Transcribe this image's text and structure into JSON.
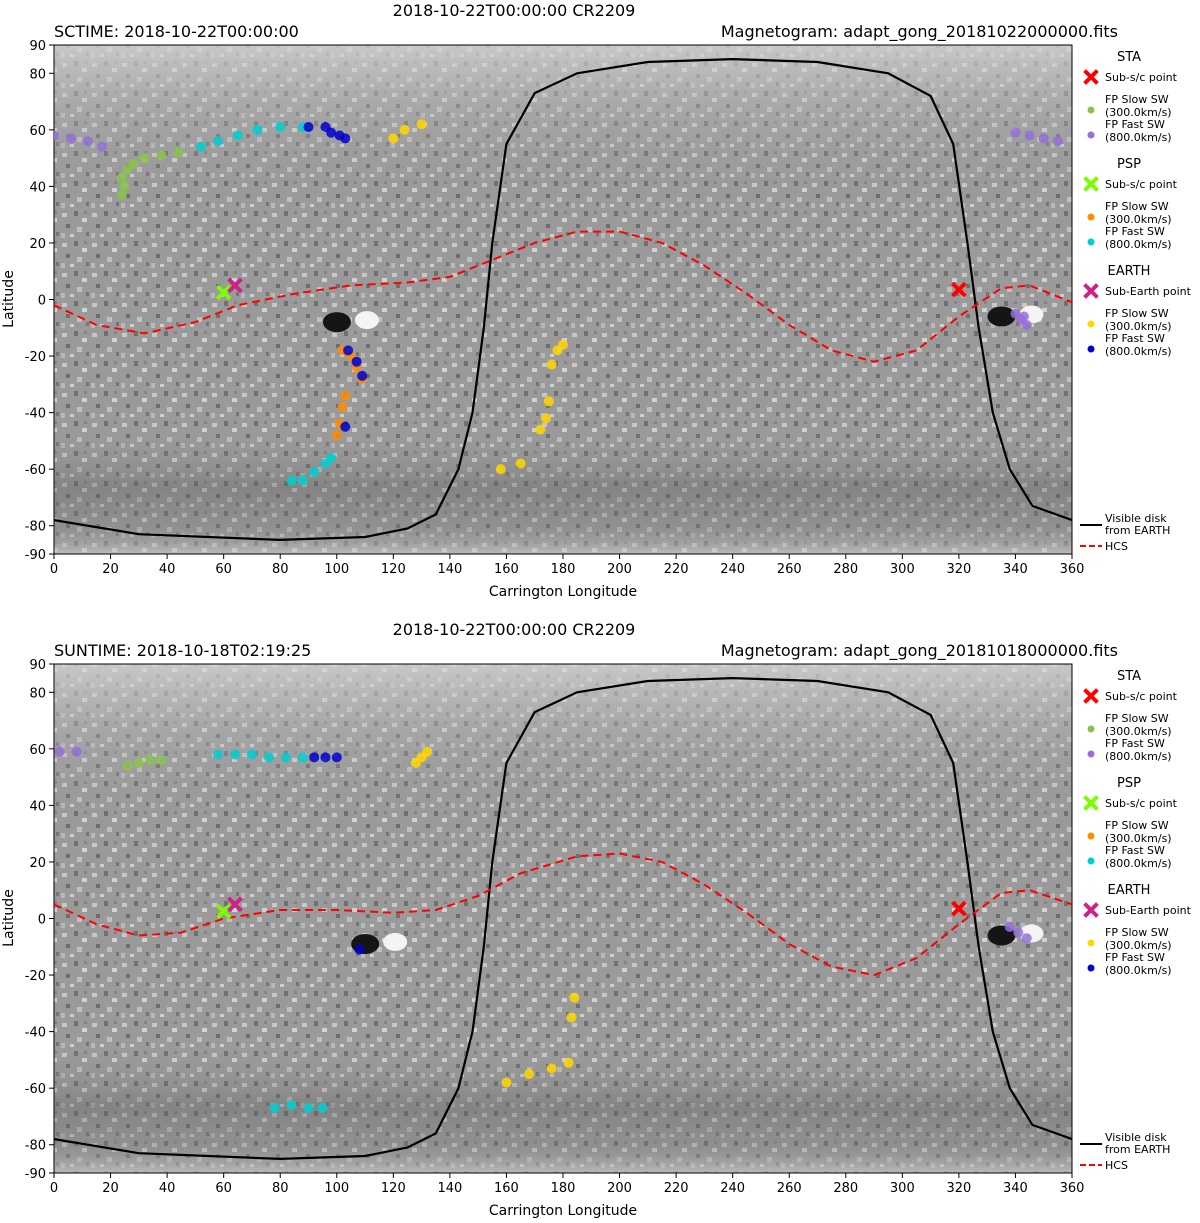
{
  "chart_data": [
    {
      "type": "scatter",
      "title": "2018-10-22T00:00:00 CR2209",
      "left_title": "SCTIME: 2018-10-22T00:00:00",
      "right_title": "Magnetogram: adapt_gong_20181022000000.fits",
      "xlabel": "Carrington Longitude",
      "ylabel": "Latitude",
      "xlim": [
        0,
        360
      ],
      "ylim": [
        -90,
        90
      ],
      "xticks": [
        "0",
        "20",
        "40",
        "60",
        "80",
        "100",
        "120",
        "140",
        "160",
        "180",
        "200",
        "220",
        "240",
        "260",
        "280",
        "300",
        "320",
        "340",
        "360"
      ],
      "yticks": [
        "90",
        "80",
        "60",
        "40",
        "20",
        "0",
        "-20",
        "-40",
        "-60",
        "-80",
        "-90"
      ],
      "background": "grayscale magnetogram",
      "magnetogram_patches": [
        {
          "lon": 105,
          "lat": -8,
          "polarity": "mixed"
        },
        {
          "lon": 340,
          "lat": -6,
          "polarity": "mixed"
        }
      ],
      "hcs": [
        [
          0,
          -2
        ],
        [
          15,
          -9
        ],
        [
          32,
          -12
        ],
        [
          50,
          -8
        ],
        [
          65,
          -2
        ],
        [
          85,
          2
        ],
        [
          105,
          5
        ],
        [
          125,
          6
        ],
        [
          140,
          8
        ],
        [
          155,
          14
        ],
        [
          170,
          20
        ],
        [
          185,
          24
        ],
        [
          200,
          24
        ],
        [
          215,
          20
        ],
        [
          230,
          12
        ],
        [
          245,
          2
        ],
        [
          260,
          -9
        ],
        [
          275,
          -18
        ],
        [
          290,
          -22
        ],
        [
          305,
          -18
        ],
        [
          320,
          -6
        ],
        [
          335,
          4
        ],
        [
          345,
          5
        ],
        [
          360,
          -1
        ]
      ],
      "visible_disk": [
        [
          0,
          -78
        ],
        [
          30,
          -83
        ],
        [
          80,
          -85
        ],
        [
          110,
          -84
        ],
        [
          125,
          -81
        ],
        [
          135,
          -76
        ],
        [
          143,
          -60
        ],
        [
          148,
          -40
        ],
        [
          152,
          -10
        ],
        [
          155,
          20
        ],
        [
          160,
          55
        ],
        [
          170,
          73
        ],
        [
          185,
          80
        ],
        [
          210,
          84
        ],
        [
          240,
          85
        ],
        [
          270,
          84
        ],
        [
          295,
          80
        ],
        [
          310,
          72
        ],
        [
          318,
          55
        ],
        [
          323,
          20
        ],
        [
          327,
          -10
        ],
        [
          332,
          -40
        ],
        [
          338,
          -60
        ],
        [
          346,
          -73
        ],
        [
          360,
          -78
        ]
      ],
      "footpoints": [
        {
          "group": "STA",
          "type": "FP Fast SW",
          "color": "#9370DB",
          "points": [
            [
              0,
              58
            ],
            [
              6,
              57
            ],
            [
              12,
              56
            ],
            [
              17,
              54
            ],
            [
              340,
              59
            ],
            [
              345,
              58
            ],
            [
              350,
              57
            ],
            [
              355,
              56
            ],
            [
              340,
              -5
            ],
            [
              342,
              -7
            ],
            [
              344,
              -9
            ],
            [
              343,
              -6
            ]
          ]
        },
        {
          "group": "STA",
          "type": "FP Slow SW",
          "color": "#8BC34A",
          "points": [
            [
              24,
              37
            ],
            [
              25,
              40
            ],
            [
              24,
              43
            ],
            [
              26,
              46
            ],
            [
              28,
              48
            ],
            [
              32,
              50
            ],
            [
              38,
              51
            ],
            [
              44,
              52
            ]
          ]
        },
        {
          "group": "PSP",
          "type": "FP Fast SW",
          "color": "#00CED1",
          "points": [
            [
              52,
              54
            ],
            [
              58,
              56
            ],
            [
              65,
              58
            ],
            [
              72,
              60
            ],
            [
              80,
              61
            ],
            [
              88,
              61
            ],
            [
              84,
              -64
            ],
            [
              88,
              -64
            ],
            [
              92,
              -61
            ],
            [
              96,
              -58
            ],
            [
              98,
              -56
            ]
          ]
        },
        {
          "group": "PSP",
          "type": "FP Slow SW",
          "color": "#FF8C00",
          "points": [
            [
              102,
              -18
            ],
            [
              105,
              -20
            ],
            [
              107,
              -24
            ],
            [
              109,
              -28
            ],
            [
              103,
              -34
            ],
            [
              102,
              -38
            ],
            [
              101,
              -44
            ],
            [
              100,
              -48
            ]
          ]
        },
        {
          "group": "EARTH",
          "type": "FP Fast SW",
          "color": "#0000CD",
          "points": [
            [
              90,
              61
            ],
            [
              96,
              61
            ],
            [
              98,
              59
            ],
            [
              101,
              58
            ],
            [
              103,
              57
            ],
            [
              104,
              -18
            ],
            [
              107,
              -22
            ],
            [
              109,
              -27
            ],
            [
              103,
              -45
            ]
          ]
        },
        {
          "group": "EARTH",
          "type": "FP Slow SW",
          "color": "#FFD700",
          "points": [
            [
              120,
              57
            ],
            [
              124,
              60
            ],
            [
              130,
              62
            ],
            [
              176,
              -23
            ],
            [
              178,
              -18
            ],
            [
              180,
              -16
            ],
            [
              175,
              -36
            ],
            [
              174,
              -42
            ],
            [
              172,
              -46
            ],
            [
              165,
              -58
            ],
            [
              158,
              -60
            ]
          ]
        }
      ],
      "markers": [
        {
          "group": "STA",
          "label": "Sub-s/c point",
          "lon": 320,
          "lat": 3.5,
          "color": "#FF0000"
        },
        {
          "group": "PSP",
          "label": "Sub-s/c point",
          "lon": 60,
          "lat": 2.5,
          "color": "#7CFC00"
        },
        {
          "group": "EARTH",
          "label": "Sub-Earth point",
          "lon": 64,
          "lat": 5,
          "color": "#CC2288"
        }
      ]
    },
    {
      "type": "scatter",
      "title": "2018-10-22T00:00:00 CR2209",
      "left_title": "SUNTIME: 2018-10-18T02:19:25",
      "right_title": "Magnetogram: adapt_gong_20181018000000.fits",
      "xlabel": "Carrington Longitude",
      "ylabel": "Latitude",
      "xlim": [
        0,
        360
      ],
      "ylim": [
        -90,
        90
      ],
      "xticks": [
        "0",
        "20",
        "40",
        "60",
        "80",
        "100",
        "120",
        "140",
        "160",
        "180",
        "200",
        "220",
        "240",
        "260",
        "280",
        "300",
        "320",
        "340",
        "360"
      ],
      "yticks": [
        "90",
        "80",
        "60",
        "40",
        "20",
        "0",
        "-20",
        "-40",
        "-60",
        "-80",
        "-90"
      ],
      "background": "grayscale magnetogram",
      "magnetogram_patches": [
        {
          "lon": 115,
          "lat": -9,
          "polarity": "mixed"
        },
        {
          "lon": 340,
          "lat": -6,
          "polarity": "mixed"
        }
      ],
      "hcs": [
        [
          0,
          5
        ],
        [
          15,
          -2
        ],
        [
          30,
          -6
        ],
        [
          45,
          -5
        ],
        [
          60,
          0
        ],
        [
          80,
          3
        ],
        [
          100,
          3
        ],
        [
          120,
          2
        ],
        [
          135,
          3
        ],
        [
          150,
          8
        ],
        [
          165,
          16
        ],
        [
          185,
          22
        ],
        [
          200,
          23
        ],
        [
          215,
          20
        ],
        [
          230,
          12
        ],
        [
          245,
          2
        ],
        [
          260,
          -9
        ],
        [
          275,
          -17
        ],
        [
          290,
          -20
        ],
        [
          305,
          -14
        ],
        [
          320,
          -2
        ],
        [
          335,
          9
        ],
        [
          345,
          10
        ],
        [
          360,
          5
        ]
      ],
      "visible_disk": [
        [
          0,
          -78
        ],
        [
          30,
          -83
        ],
        [
          80,
          -85
        ],
        [
          110,
          -84
        ],
        [
          125,
          -81
        ],
        [
          135,
          -76
        ],
        [
          143,
          -60
        ],
        [
          148,
          -40
        ],
        [
          152,
          -10
        ],
        [
          155,
          20
        ],
        [
          160,
          55
        ],
        [
          170,
          73
        ],
        [
          185,
          80
        ],
        [
          210,
          84
        ],
        [
          240,
          85
        ],
        [
          270,
          84
        ],
        [
          295,
          80
        ],
        [
          310,
          72
        ],
        [
          318,
          55
        ],
        [
          323,
          20
        ],
        [
          327,
          -10
        ],
        [
          332,
          -40
        ],
        [
          338,
          -60
        ],
        [
          346,
          -73
        ],
        [
          360,
          -78
        ]
      ],
      "footpoints": [
        {
          "group": "STA",
          "type": "FP Fast SW",
          "color": "#9370DB",
          "points": [
            [
              2,
              59
            ],
            [
              8,
              59
            ],
            [
              338,
              -3
            ],
            [
              341,
              -5
            ],
            [
              344,
              -7
            ]
          ]
        },
        {
          "group": "STA",
          "type": "FP Slow SW",
          "color": "#8BC34A",
          "points": [
            [
              26,
              54
            ],
            [
              30,
              55
            ],
            [
              34,
              56
            ],
            [
              38,
              56
            ]
          ]
        },
        {
          "group": "PSP",
          "type": "FP Fast SW",
          "color": "#00CED1",
          "points": [
            [
              58,
              58
            ],
            [
              64,
              58
            ],
            [
              70,
              58
            ],
            [
              76,
              57
            ],
            [
              82,
              57
            ],
            [
              88,
              57
            ],
            [
              78,
              -67
            ],
            [
              84,
              -66
            ],
            [
              90,
              -67
            ],
            [
              95,
              -67
            ]
          ]
        },
        {
          "group": "PSP",
          "type": "FP Slow SW",
          "color": "#FF8C00",
          "points": []
        },
        {
          "group": "EARTH",
          "type": "FP Fast SW",
          "color": "#0000CD",
          "points": [
            [
              92,
              57
            ],
            [
              96,
              57
            ],
            [
              100,
              57
            ],
            [
              108,
              -11
            ]
          ]
        },
        {
          "group": "EARTH",
          "type": "FP Slow SW",
          "color": "#FFD700",
          "points": [
            [
              128,
              55
            ],
            [
              130,
              57
            ],
            [
              132,
              59
            ],
            [
              160,
              -58
            ],
            [
              168,
              -55
            ],
            [
              176,
              -53
            ],
            [
              182,
              -51
            ],
            [
              184,
              -28
            ],
            [
              183,
              -35
            ]
          ]
        }
      ],
      "markers": [
        {
          "group": "STA",
          "label": "Sub-s/c point",
          "lon": 320,
          "lat": 3.5,
          "color": "#FF0000"
        },
        {
          "group": "PSP",
          "label": "Sub-s/c point",
          "lon": 60,
          "lat": 2.5,
          "color": "#7CFC00"
        },
        {
          "group": "EARTH",
          "label": "Sub-Earth point",
          "lon": 64,
          "lat": 5,
          "color": "#CC2288"
        }
      ]
    }
  ],
  "legend": {
    "groups": [
      {
        "name": "STA",
        "items": [
          {
            "kind": "x",
            "label": "Sub-s/c point",
            "color": "#FF0000"
          },
          {
            "kind": "dot",
            "label": "FP Slow SW",
            "sub": "(300.0km/s)",
            "color": "#8BC34A"
          },
          {
            "kind": "dot",
            "label": "FP Fast SW",
            "sub": "(800.0km/s)",
            "color": "#9370DB"
          }
        ]
      },
      {
        "name": "PSP",
        "items": [
          {
            "kind": "x",
            "label": "Sub-s/c point",
            "color": "#7CFC00"
          },
          {
            "kind": "dot",
            "label": "FP Slow SW",
            "sub": "(300.0km/s)",
            "color": "#FF8C00"
          },
          {
            "kind": "dot",
            "label": "FP Fast SW",
            "sub": "(800.0km/s)",
            "color": "#00CED1"
          }
        ]
      },
      {
        "name": "EARTH",
        "items": [
          {
            "kind": "x",
            "label": "Sub-Earth point",
            "color": "#CC2288"
          },
          {
            "kind": "dot",
            "label": "FP Slow SW",
            "sub": "(300.0km/s)",
            "color": "#FFD700"
          },
          {
            "kind": "dot",
            "label": "FP Fast SW",
            "sub": "(800.0km/s)",
            "color": "#0000CD"
          }
        ]
      }
    ],
    "lines": [
      {
        "kind": "solid",
        "label": "Visible disk",
        "sub": "from EARTH",
        "color": "#000000"
      },
      {
        "kind": "dashed",
        "label": "HCS",
        "color": "#FF0000"
      }
    ]
  }
}
